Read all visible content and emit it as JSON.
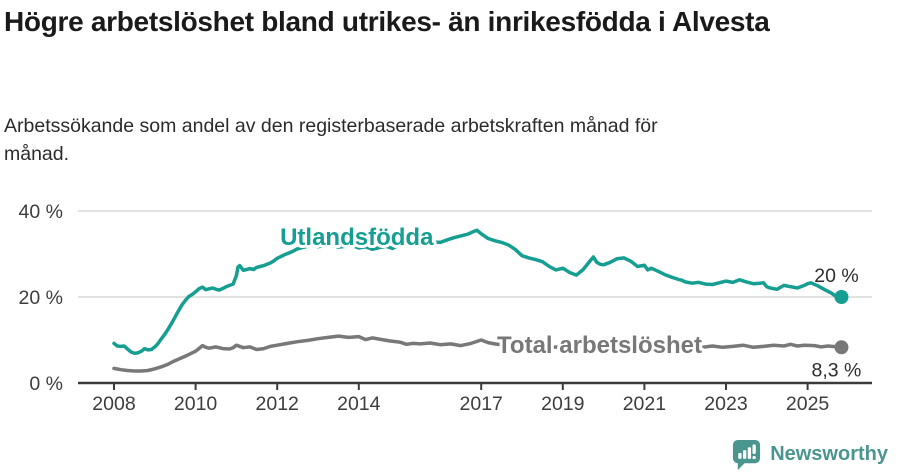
{
  "header": {
    "title": "Högre arbetslöshet bland utrikes- än inrikesfödda i Alvesta",
    "subtitle": "Arbetssökande som andel av den registerbaserade arbetskraften månad för månad."
  },
  "footer": {
    "brand": "Newsworthy",
    "icon": "newsworthy-speech-bubble-bar-chart-icon",
    "brand_color": "#4a968f"
  },
  "chart_data": {
    "type": "line",
    "unit": "%",
    "grid": "horizontal-only",
    "legend": "inline-labels",
    "x_axis": {
      "tick_labels": [
        "2008",
        "2010",
        "2012",
        "2014",
        "2017",
        "2019",
        "2021",
        "2023",
        "2025"
      ],
      "tick_values": [
        2008,
        2010,
        2012,
        2014,
        2017,
        2019,
        2021,
        2023,
        2025
      ],
      "range": [
        2007.1,
        2026.6
      ]
    },
    "y_axis": {
      "tick_labels": [
        "0 %",
        "20 %",
        "40 %"
      ],
      "tick_values": [
        0,
        20,
        40
      ],
      "range": [
        0,
        40
      ]
    },
    "series": [
      {
        "name": "Utlandsfödda",
        "color": "#169e92",
        "end_label": "20 %",
        "end_value": 20,
        "label_anchor": [
          2013.95,
          34.0
        ],
        "points": [
          [
            2008.0,
            9.2
          ],
          [
            2008.08,
            8.6
          ],
          [
            2008.17,
            8.5
          ],
          [
            2008.25,
            8.6
          ],
          [
            2008.33,
            7.9
          ],
          [
            2008.42,
            7.2
          ],
          [
            2008.5,
            6.9
          ],
          [
            2008.58,
            7.0
          ],
          [
            2008.67,
            7.4
          ],
          [
            2008.75,
            8.0
          ],
          [
            2008.83,
            7.7
          ],
          [
            2008.92,
            7.8
          ],
          [
            2009.0,
            8.4
          ],
          [
            2009.08,
            9.2
          ],
          [
            2009.17,
            10.4
          ],
          [
            2009.25,
            11.4
          ],
          [
            2009.33,
            12.6
          ],
          [
            2009.42,
            14.0
          ],
          [
            2009.5,
            15.4
          ],
          [
            2009.58,
            16.8
          ],
          [
            2009.67,
            18.2
          ],
          [
            2009.75,
            19.2
          ],
          [
            2009.83,
            20.1
          ],
          [
            2009.92,
            20.6
          ],
          [
            2010.0,
            21.2
          ],
          [
            2010.08,
            21.9
          ],
          [
            2010.17,
            22.3
          ],
          [
            2010.25,
            21.7
          ],
          [
            2010.33,
            21.9
          ],
          [
            2010.42,
            22.1
          ],
          [
            2010.5,
            21.8
          ],
          [
            2010.58,
            21.6
          ],
          [
            2010.67,
            22.0
          ],
          [
            2010.75,
            22.4
          ],
          [
            2010.83,
            22.7
          ],
          [
            2010.92,
            23.0
          ],
          [
            2011.0,
            25.0
          ],
          [
            2011.04,
            27.0
          ],
          [
            2011.08,
            27.3
          ],
          [
            2011.17,
            26.2
          ],
          [
            2011.25,
            26.4
          ],
          [
            2011.33,
            26.6
          ],
          [
            2011.42,
            26.4
          ],
          [
            2011.5,
            26.9
          ],
          [
            2011.58,
            27.1
          ],
          [
            2011.67,
            27.3
          ],
          [
            2011.75,
            27.6
          ],
          [
            2011.83,
            27.9
          ],
          [
            2011.92,
            28.4
          ],
          [
            2012.0,
            29.0
          ],
          [
            2012.17,
            29.8
          ],
          [
            2012.33,
            30.4
          ],
          [
            2012.5,
            31.2
          ],
          [
            2012.67,
            31.6
          ],
          [
            2012.83,
            32.0
          ],
          [
            2012.92,
            32.1
          ],
          [
            2013.0,
            31.7
          ],
          [
            2013.17,
            31.9
          ],
          [
            2013.33,
            32.1
          ],
          [
            2013.5,
            31.6
          ],
          [
            2013.67,
            31.8
          ],
          [
            2013.83,
            32.0
          ],
          [
            2014.0,
            31.4
          ],
          [
            2014.17,
            31.7
          ],
          [
            2014.33,
            31.1
          ],
          [
            2014.5,
            31.5
          ],
          [
            2014.67,
            31.8
          ],
          [
            2014.83,
            31.3
          ],
          [
            2015.0,
            32.2
          ],
          [
            2015.25,
            32.7
          ],
          [
            2015.5,
            33.3
          ],
          [
            2015.75,
            32.8
          ],
          [
            2016.0,
            32.7
          ],
          [
            2016.17,
            33.3
          ],
          [
            2016.33,
            33.8
          ],
          [
            2016.5,
            34.2
          ],
          [
            2016.67,
            34.6
          ],
          [
            2016.83,
            35.3
          ],
          [
            2016.9,
            35.5
          ],
          [
            2017.0,
            34.7
          ],
          [
            2017.17,
            33.6
          ],
          [
            2017.33,
            33.1
          ],
          [
            2017.5,
            32.7
          ],
          [
            2017.67,
            32.1
          ],
          [
            2017.83,
            31.1
          ],
          [
            2018.0,
            29.6
          ],
          [
            2018.17,
            29.1
          ],
          [
            2018.33,
            28.7
          ],
          [
            2018.5,
            28.2
          ],
          [
            2018.67,
            27.1
          ],
          [
            2018.83,
            26.3
          ],
          [
            2019.0,
            26.7
          ],
          [
            2019.17,
            25.7
          ],
          [
            2019.33,
            25.1
          ],
          [
            2019.5,
            26.4
          ],
          [
            2019.67,
            28.4
          ],
          [
            2019.75,
            29.3
          ],
          [
            2019.83,
            28.1
          ],
          [
            2019.92,
            27.6
          ],
          [
            2020.0,
            27.5
          ],
          [
            2020.17,
            28.1
          ],
          [
            2020.33,
            28.9
          ],
          [
            2020.5,
            29.1
          ],
          [
            2020.67,
            28.3
          ],
          [
            2020.83,
            27.1
          ],
          [
            2021.0,
            27.4
          ],
          [
            2021.08,
            26.3
          ],
          [
            2021.17,
            26.7
          ],
          [
            2021.33,
            26.0
          ],
          [
            2021.5,
            25.2
          ],
          [
            2021.67,
            24.6
          ],
          [
            2021.83,
            24.1
          ],
          [
            2021.92,
            23.9
          ],
          [
            2022.0,
            23.5
          ],
          [
            2022.17,
            23.2
          ],
          [
            2022.33,
            23.4
          ],
          [
            2022.5,
            23.0
          ],
          [
            2022.67,
            22.9
          ],
          [
            2022.83,
            23.3
          ],
          [
            2023.0,
            23.7
          ],
          [
            2023.17,
            23.4
          ],
          [
            2023.33,
            24.0
          ],
          [
            2023.5,
            23.5
          ],
          [
            2023.67,
            23.1
          ],
          [
            2023.83,
            23.2
          ],
          [
            2023.92,
            23.3
          ],
          [
            2024.0,
            22.4
          ],
          [
            2024.08,
            22.1
          ],
          [
            2024.25,
            21.8
          ],
          [
            2024.42,
            22.7
          ],
          [
            2024.58,
            22.4
          ],
          [
            2024.75,
            22.1
          ],
          [
            2024.92,
            22.7
          ],
          [
            2025.0,
            23.1
          ],
          [
            2025.08,
            23.3
          ],
          [
            2025.25,
            22.6
          ],
          [
            2025.42,
            21.7
          ],
          [
            2025.58,
            20.9
          ],
          [
            2025.67,
            20.3
          ],
          [
            2025.83,
            20.0
          ]
        ]
      },
      {
        "name": "Total arbetslöshet",
        "color": "#787878",
        "end_label": "8,3 %",
        "end_value": 8.3,
        "label_anchor": [
          2019.9,
          8.8
        ],
        "points": [
          [
            2008.0,
            3.4
          ],
          [
            2008.17,
            3.1
          ],
          [
            2008.33,
            2.9
          ],
          [
            2008.5,
            2.8
          ],
          [
            2008.67,
            2.8
          ],
          [
            2008.83,
            2.9
          ],
          [
            2009.0,
            3.3
          ],
          [
            2009.17,
            3.8
          ],
          [
            2009.33,
            4.4
          ],
          [
            2009.5,
            5.2
          ],
          [
            2009.67,
            5.9
          ],
          [
            2009.83,
            6.6
          ],
          [
            2010.0,
            7.4
          ],
          [
            2010.08,
            8.0
          ],
          [
            2010.17,
            8.7
          ],
          [
            2010.25,
            8.3
          ],
          [
            2010.33,
            8.1
          ],
          [
            2010.5,
            8.4
          ],
          [
            2010.67,
            8.0
          ],
          [
            2010.83,
            7.9
          ],
          [
            2010.92,
            8.2
          ],
          [
            2011.0,
            8.8
          ],
          [
            2011.17,
            8.2
          ],
          [
            2011.33,
            8.4
          ],
          [
            2011.5,
            7.8
          ],
          [
            2011.67,
            8.0
          ],
          [
            2011.83,
            8.5
          ],
          [
            2012.0,
            8.8
          ],
          [
            2012.25,
            9.2
          ],
          [
            2012.5,
            9.6
          ],
          [
            2012.75,
            9.9
          ],
          [
            2013.0,
            10.3
          ],
          [
            2013.25,
            10.6
          ],
          [
            2013.5,
            10.9
          ],
          [
            2013.75,
            10.6
          ],
          [
            2014.0,
            10.8
          ],
          [
            2014.17,
            10.1
          ],
          [
            2014.33,
            10.5
          ],
          [
            2014.5,
            10.2
          ],
          [
            2014.75,
            9.8
          ],
          [
            2015.0,
            9.5
          ],
          [
            2015.17,
            9.0
          ],
          [
            2015.33,
            9.2
          ],
          [
            2015.5,
            9.1
          ],
          [
            2015.75,
            9.3
          ],
          [
            2016.0,
            8.9
          ],
          [
            2016.25,
            9.1
          ],
          [
            2016.5,
            8.7
          ],
          [
            2016.75,
            9.2
          ],
          [
            2017.0,
            10.0
          ],
          [
            2017.17,
            9.4
          ],
          [
            2017.33,
            9.1
          ],
          [
            2017.5,
            8.9
          ],
          [
            2017.75,
            8.7
          ],
          [
            2018.0,
            8.6
          ],
          [
            2018.5,
            8.4
          ],
          [
            2019.0,
            8.3
          ],
          [
            2019.5,
            8.5
          ],
          [
            2020.0,
            8.8
          ],
          [
            2020.5,
            8.7
          ],
          [
            2021.0,
            8.6
          ],
          [
            2021.5,
            8.5
          ],
          [
            2022.0,
            8.4
          ],
          [
            2022.17,
            8.4
          ],
          [
            2022.42,
            8.3
          ],
          [
            2022.67,
            8.6
          ],
          [
            2022.92,
            8.3
          ],
          [
            2023.17,
            8.5
          ],
          [
            2023.42,
            8.8
          ],
          [
            2023.67,
            8.3
          ],
          [
            2023.92,
            8.5
          ],
          [
            2024.17,
            8.8
          ],
          [
            2024.42,
            8.6
          ],
          [
            2024.58,
            9.0
          ],
          [
            2024.75,
            8.6
          ],
          [
            2024.92,
            8.8
          ],
          [
            2025.17,
            8.7
          ],
          [
            2025.33,
            8.4
          ],
          [
            2025.5,
            8.6
          ],
          [
            2025.83,
            8.3
          ]
        ]
      }
    ]
  }
}
